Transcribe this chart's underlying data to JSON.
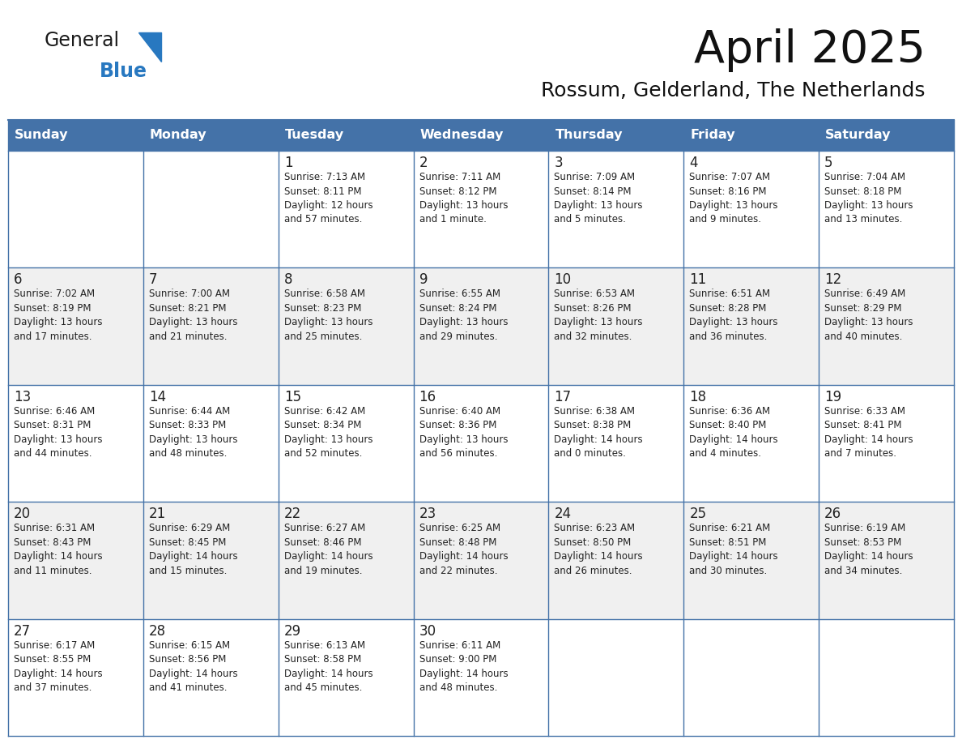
{
  "title": "April 2025",
  "subtitle": "Rossum, Gelderland, The Netherlands",
  "days_of_week": [
    "Sunday",
    "Monday",
    "Tuesday",
    "Wednesday",
    "Thursday",
    "Friday",
    "Saturday"
  ],
  "header_bg": "#4472A8",
  "header_text": "#FFFFFF",
  "row_bg_white": "#FFFFFF",
  "row_bg_gray": "#F0F0F0",
  "border_color": "#4472A8",
  "text_color": "#222222",
  "logo_general_color": "#1a1a1a",
  "logo_blue_color": "#2878C0",
  "logo_triangle_color": "#2878C0",
  "weeks": [
    [
      {
        "day": null,
        "info": ""
      },
      {
        "day": null,
        "info": ""
      },
      {
        "day": 1,
        "info": "Sunrise: 7:13 AM\nSunset: 8:11 PM\nDaylight: 12 hours\nand 57 minutes."
      },
      {
        "day": 2,
        "info": "Sunrise: 7:11 AM\nSunset: 8:12 PM\nDaylight: 13 hours\nand 1 minute."
      },
      {
        "day": 3,
        "info": "Sunrise: 7:09 AM\nSunset: 8:14 PM\nDaylight: 13 hours\nand 5 minutes."
      },
      {
        "day": 4,
        "info": "Sunrise: 7:07 AM\nSunset: 8:16 PM\nDaylight: 13 hours\nand 9 minutes."
      },
      {
        "day": 5,
        "info": "Sunrise: 7:04 AM\nSunset: 8:18 PM\nDaylight: 13 hours\nand 13 minutes."
      }
    ],
    [
      {
        "day": 6,
        "info": "Sunrise: 7:02 AM\nSunset: 8:19 PM\nDaylight: 13 hours\nand 17 minutes."
      },
      {
        "day": 7,
        "info": "Sunrise: 7:00 AM\nSunset: 8:21 PM\nDaylight: 13 hours\nand 21 minutes."
      },
      {
        "day": 8,
        "info": "Sunrise: 6:58 AM\nSunset: 8:23 PM\nDaylight: 13 hours\nand 25 minutes."
      },
      {
        "day": 9,
        "info": "Sunrise: 6:55 AM\nSunset: 8:24 PM\nDaylight: 13 hours\nand 29 minutes."
      },
      {
        "day": 10,
        "info": "Sunrise: 6:53 AM\nSunset: 8:26 PM\nDaylight: 13 hours\nand 32 minutes."
      },
      {
        "day": 11,
        "info": "Sunrise: 6:51 AM\nSunset: 8:28 PM\nDaylight: 13 hours\nand 36 minutes."
      },
      {
        "day": 12,
        "info": "Sunrise: 6:49 AM\nSunset: 8:29 PM\nDaylight: 13 hours\nand 40 minutes."
      }
    ],
    [
      {
        "day": 13,
        "info": "Sunrise: 6:46 AM\nSunset: 8:31 PM\nDaylight: 13 hours\nand 44 minutes."
      },
      {
        "day": 14,
        "info": "Sunrise: 6:44 AM\nSunset: 8:33 PM\nDaylight: 13 hours\nand 48 minutes."
      },
      {
        "day": 15,
        "info": "Sunrise: 6:42 AM\nSunset: 8:34 PM\nDaylight: 13 hours\nand 52 minutes."
      },
      {
        "day": 16,
        "info": "Sunrise: 6:40 AM\nSunset: 8:36 PM\nDaylight: 13 hours\nand 56 minutes."
      },
      {
        "day": 17,
        "info": "Sunrise: 6:38 AM\nSunset: 8:38 PM\nDaylight: 14 hours\nand 0 minutes."
      },
      {
        "day": 18,
        "info": "Sunrise: 6:36 AM\nSunset: 8:40 PM\nDaylight: 14 hours\nand 4 minutes."
      },
      {
        "day": 19,
        "info": "Sunrise: 6:33 AM\nSunset: 8:41 PM\nDaylight: 14 hours\nand 7 minutes."
      }
    ],
    [
      {
        "day": 20,
        "info": "Sunrise: 6:31 AM\nSunset: 8:43 PM\nDaylight: 14 hours\nand 11 minutes."
      },
      {
        "day": 21,
        "info": "Sunrise: 6:29 AM\nSunset: 8:45 PM\nDaylight: 14 hours\nand 15 minutes."
      },
      {
        "day": 22,
        "info": "Sunrise: 6:27 AM\nSunset: 8:46 PM\nDaylight: 14 hours\nand 19 minutes."
      },
      {
        "day": 23,
        "info": "Sunrise: 6:25 AM\nSunset: 8:48 PM\nDaylight: 14 hours\nand 22 minutes."
      },
      {
        "day": 24,
        "info": "Sunrise: 6:23 AM\nSunset: 8:50 PM\nDaylight: 14 hours\nand 26 minutes."
      },
      {
        "day": 25,
        "info": "Sunrise: 6:21 AM\nSunset: 8:51 PM\nDaylight: 14 hours\nand 30 minutes."
      },
      {
        "day": 26,
        "info": "Sunrise: 6:19 AM\nSunset: 8:53 PM\nDaylight: 14 hours\nand 34 minutes."
      }
    ],
    [
      {
        "day": 27,
        "info": "Sunrise: 6:17 AM\nSunset: 8:55 PM\nDaylight: 14 hours\nand 37 minutes."
      },
      {
        "day": 28,
        "info": "Sunrise: 6:15 AM\nSunset: 8:56 PM\nDaylight: 14 hours\nand 41 minutes."
      },
      {
        "day": 29,
        "info": "Sunrise: 6:13 AM\nSunset: 8:58 PM\nDaylight: 14 hours\nand 45 minutes."
      },
      {
        "day": 30,
        "info": "Sunrise: 6:11 AM\nSunset: 9:00 PM\nDaylight: 14 hours\nand 48 minutes."
      },
      {
        "day": null,
        "info": ""
      },
      {
        "day": null,
        "info": ""
      },
      {
        "day": null,
        "info": ""
      }
    ]
  ]
}
